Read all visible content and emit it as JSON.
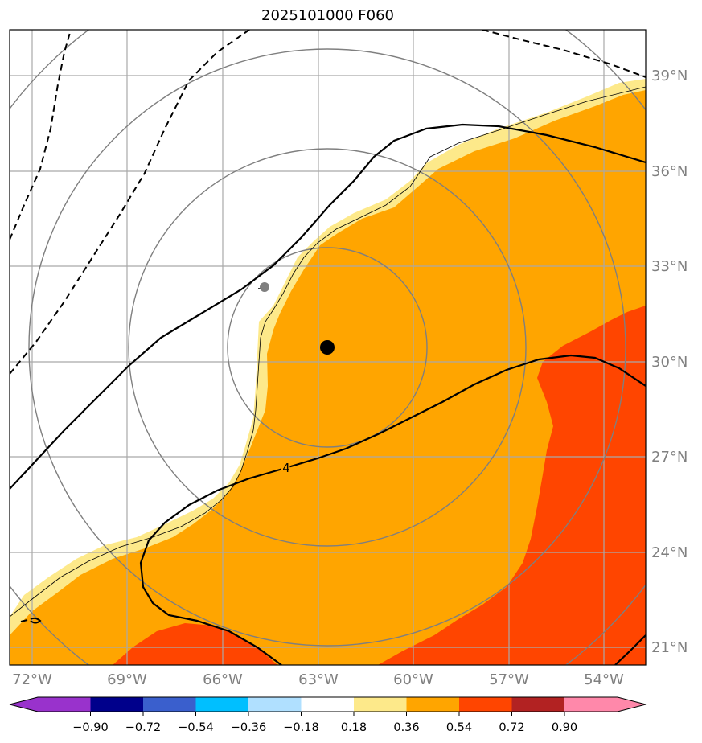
{
  "title": "2025101000 F060",
  "colors": {
    "white_band": "#ffffff",
    "light_yellow": "#fde98a",
    "orange": "#ffa500",
    "red_orange": "#ff4500",
    "contour_black": "#000000",
    "ring_gray": "#7f7f7f",
    "grid_gray": "#a9a9a9",
    "tick_label_gray": "#808080"
  },
  "lon_labels": [
    "72°W",
    "69°W",
    "66°W",
    "63°W",
    "60°W",
    "57°W",
    "54°W"
  ],
  "lat_labels": [
    "39°N",
    "36°N",
    "33°N",
    "30°N",
    "27°N",
    "24°N",
    "21°N"
  ],
  "contour_label": "4",
  "center_marker": "storm-center-dot",
  "colorbar": {
    "ticks": [
      "−0.90",
      "−0.72",
      "−0.54",
      "−0.36",
      "−0.18",
      "0.18",
      "0.36",
      "0.54",
      "0.72",
      "0.90"
    ],
    "colors": [
      "#9932cc",
      "#00008b",
      "#3a5fcd",
      "#00bfff",
      "#b0e0ff",
      "#ffffff",
      "#fde98a",
      "#ffa500",
      "#ff4500",
      "#b22222",
      "#ff88aa"
    ]
  }
}
